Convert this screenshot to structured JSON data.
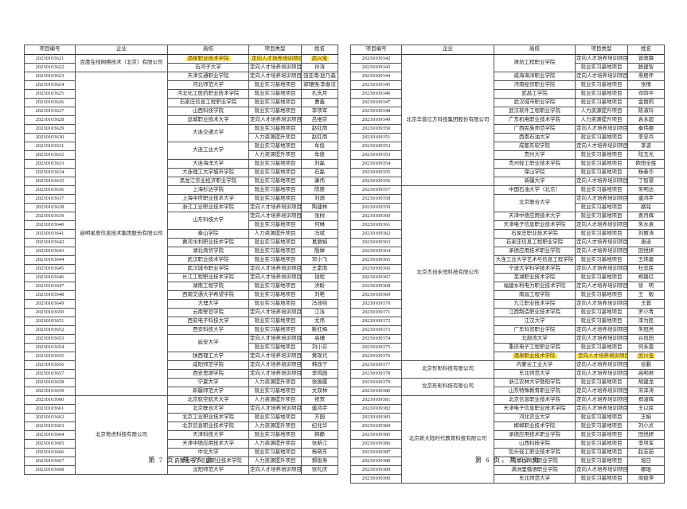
{
  "colors": {
    "highlight": "#ffe95e",
    "highlight_text": "#533700"
  },
  "header": {
    "col_id": "项目编号",
    "col_enterprise": "企业",
    "col_school": "高校",
    "col_type": "项目类型",
    "col_name": "姓名"
  },
  "row_format": "[project_id, school, project_type, name, school_rowspan(0=merged-into-above), highlighted(0|1)]",
  "left_table": {
    "footer": "第 7 页，共 75 页",
    "groups": [
      {
        "enterprise": "百度在线网络技术（北京）有限公司",
        "rows": [
          [
            "20230103621",
            "酒泉职业技术学院",
            "定向人才培养培训项目",
            "武兴宝",
            1,
            1
          ],
          [
            "20230103622",
            "石河子大学",
            "定向人才培养培训项目",
            "孙涛",
            1,
            0
          ]
        ]
      },
      {
        "enterprise": "启明星辰信息技术集团股份有限公司",
        "rows": [
          [
            "20230103623",
            "天津交通职业学院",
            "定向人才培养培训项目",
            "田亚南/赵乃森",
            1,
            0
          ],
          [
            "20230103624",
            "河北师范大学",
            "就业实习基地项目",
            "郭珊强/李春洁",
            1,
            0
          ],
          [
            "20230103625",
            "河北化工医药职业技术学院",
            "就业实习基地项目",
            "孔庆月",
            1,
            0
          ],
          [
            "20230103626",
            "石家庄信息工程职业学院",
            "就业实习基地项目",
            "曹鑫",
            1,
            0
          ],
          [
            "20230103627",
            "山西科技学院",
            "就业实习基地项目",
            "李项军",
            1,
            0
          ],
          [
            "20230103628",
            "运城职业技术大学",
            "定向人才培养培训项目",
            "吕维宗",
            1,
            0
          ],
          [
            "20230103629",
            "大连交通大学",
            "就业实习基地项目",
            "赵红雨",
            2,
            0
          ],
          [
            "20230103630",
            "",
            "人力资源提升项目",
            "赵红雨",
            0,
            0
          ],
          [
            "20230103631",
            "大连工业大学",
            "就业实习基地项目",
            "牟俊",
            2,
            0
          ],
          [
            "20230103632",
            "",
            "人力资源提升项目",
            "牟俊",
            0,
            0
          ],
          [
            "20230103633",
            "大连海洋大学",
            "就业实习基地项目",
            "刘磊",
            1,
            0
          ],
          [
            "20230103634",
            "大连理工大学城市学院",
            "就业实习基地项目",
            "石磊",
            1,
            0
          ],
          [
            "20230103635",
            "黑龙江农业经济职业学院",
            "就业实习基地项目",
            "康伟",
            1,
            0
          ],
          [
            "20230103636",
            "上海杉达学院",
            "就业实习基地项目",
            "陈庚",
            1,
            0
          ],
          [
            "20230103637",
            "上海中侨职业技术大学",
            "就业实习基地项目",
            "刘源",
            1,
            0
          ],
          [
            "20230103638",
            "浙江工业职业技术学院",
            "定向人才培养培训项目",
            "陶建林",
            1,
            0
          ],
          [
            "20230103639",
            "山东科技大学",
            "定向人才培养培训项目",
            "张树",
            2,
            0
          ],
          [
            "20230103640",
            "",
            "就业实习基地项目",
            "何琳",
            0,
            0
          ],
          [
            "20230103641",
            "泰山学院",
            "人力资源提升项目",
            "冯斌",
            1,
            0
          ],
          [
            "20230103642",
            "黄河水利职业技术学院",
            "就业实习基地项目",
            "葛丽娟",
            1,
            0
          ],
          [
            "20230103643",
            "湖北商贸学院",
            "就业实习基地项目",
            "殷婵",
            1,
            0
          ],
          [
            "20230103644",
            "武汉职业技术学院",
            "就业实习基地项目",
            "邓小飞",
            1,
            0
          ],
          [
            "20230103645",
            "武汉城市职业学院",
            "定向人才培养培训项目",
            "王素南",
            1,
            0
          ],
          [
            "20230103646",
            "长江工程职业技术学院",
            "定向人才培养培训项目",
            "钱程",
            1,
            0
          ],
          [
            "20230103647",
            "湖南工程学院",
            "就业实习基地项目",
            "洪盼",
            1,
            0
          ],
          [
            "20230103648",
            "西南交通大学希望学院",
            "就业实习基地项目",
            "刘艳",
            1,
            0
          ],
          [
            "20230103649",
            "大理大学",
            "就业实习基地项目",
            "冯效结",
            1,
            0
          ],
          [
            "20230103650",
            "云南警官学院",
            "定向人才培养培训项目",
            "江洛",
            1,
            0
          ],
          [
            "20230103651",
            "西安电子科技大学",
            "就业实习基地项目",
            "尤伟",
            1,
            0
          ],
          [
            "20230103652",
            "西安科技大学",
            "就业实习基地项目",
            "靳红梅",
            1,
            0
          ],
          [
            "20230103653",
            "延安大学",
            "定向人才培养培训项目",
            "高珊",
            2,
            0
          ],
          [
            "20230103654",
            "",
            "就业实习基地项目",
            "刘小芬",
            0,
            0
          ],
          [
            "20230103655",
            "陕西理工大学",
            "定向人才培养培训项目",
            "黄现代",
            1,
            0
          ],
          [
            "20230103656",
            "咸阳师范学院",
            "定向人才培养培训项目",
            "韩改宁",
            1,
            0
          ],
          [
            "20230103657",
            "西安思源学院",
            "定向人才培养培训项目",
            "李鸣园",
            1,
            0
          ],
          [
            "20230103658",
            "宁夏大学",
            "人力资源提升项目",
            "张振霞",
            1,
            0
          ],
          [
            "20230103659",
            "新疆师范大学",
            "就业实习基地项目",
            "文双林",
            1,
            0
          ]
        ]
      },
      {
        "enterprise": "北京奇虎科技有限公司",
        "rows": [
          [
            "20230103660",
            "北京航空航天大学",
            "人力资源提升项目",
            "祝贺",
            1,
            0
          ],
          [
            "20230103661",
            "北京联合大学",
            "定向人才培养培训项目",
            "盛鸿宇",
            1,
            0
          ],
          [
            "20230103662",
            "北京工业职业技术学院",
            "就业实习基地项目",
            "方园",
            1,
            0
          ],
          [
            "20230103663",
            "北京信息职业技术学院",
            "人力资源提升项目",
            "纪兆华",
            1,
            0
          ],
          [
            "20230103664",
            "天津科技大学",
            "就业实习基地项目",
            "韩静",
            1,
            0
          ],
          [
            "20230103665",
            "天津中德应用技术大学",
            "人力资源提升项目",
            "张新江",
            1,
            0
          ],
          [
            "20230103666",
            "中北大学",
            "就业实习基地项目",
            "杨晓东",
            1,
            0
          ],
          [
            "20230103667",
            "内蒙古电子信息职业技术学院",
            "人力资源提升项目",
            "郝俊寿",
            1,
            0
          ],
          [
            "20230103668",
            "沈阳师范大学",
            "定向人才培养培训项目",
            "张礼庆",
            1,
            0
          ]
        ]
      }
    ]
  },
  "right_table": {
    "footer": "第 6 页，共 32 页",
    "groups": [
      {
        "enterprise": "北京华普亿方科技集团股份有限公司",
        "rows": [
          [
            "20230109342",
            "潍坊工程职业学院",
            "定向人才培养培训项目",
            "曾政霖",
            2,
            0
          ],
          [
            "20230109343",
            "",
            "就业实习基地项目",
            "脱建智",
            0,
            0
          ],
          [
            "20230109344",
            "威海海洋职业学院",
            "定向人才培养培训项目",
            "燕居怀",
            1,
            0
          ],
          [
            "20230109345",
            "河南经贸职业学院",
            "就业实习基地项目",
            "张倩",
            1,
            0
          ],
          [
            "20230109346",
            "武昌工学院",
            "就业实习基地项目",
            "邓四平",
            1,
            0
          ],
          [
            "20230109347",
            "武汉城市职业学院",
            "就业实习基地项目",
            "金丽莉",
            1,
            0
          ],
          [
            "20230109348",
            "武汉软件工程职业学院",
            "人力资源提升项目",
            "陈淑玲",
            1,
            0
          ],
          [
            "20230109349",
            "广东机电职业技术学院",
            "人力资源提升项目",
            "袁永超",
            1,
            0
          ],
          [
            "20230109350",
            "广西民族师范学院",
            "定向人才培养培训项目",
            "秦伟娜",
            1,
            0
          ],
          [
            "20230109351",
            "西南石油大学",
            "就业实习基地项目",
            "李忠兵",
            1,
            0
          ],
          [
            "20230109352",
            "成都东软学院",
            "定向人才培养培训项目",
            "李波",
            1,
            0
          ],
          [
            "20230109353",
            "贵州大学",
            "就业实习基地项目",
            "陆玉光",
            1,
            0
          ],
          [
            "20230109354",
            "贵州轻工职业技术学院",
            "就业实习基地项目",
            "欧阳全胜",
            1,
            0
          ],
          [
            "20230109355",
            "保山学院",
            "就业实习基地项目",
            "杨春华",
            1,
            0
          ],
          [
            "20230109356",
            "新疆大学",
            "定向人才培养培训项目",
            "丁智慧",
            1,
            0
          ]
        ]
      },
      {
        "enterprise": "北京杰创永恒科技有限公司",
        "rows": [
          [
            "20230109357",
            "中国石油大学（北京）",
            "就业实习基地项目",
            "朱明达",
            1,
            0
          ],
          [
            "20230109358",
            "北京联合大学",
            "定向人才培养培训项目",
            "盛鸿宇",
            2,
            0
          ],
          [
            "20230109359",
            "",
            "就业实习基地项目",
            "路铭",
            0,
            0
          ],
          [
            "20230109360",
            "天津中德应用技术大学",
            "就业实习基地项目",
            "贾月辉",
            1,
            0
          ],
          [
            "20230109361",
            "天津电子信息职业技术学院",
            "定向人才培养培训项目",
            "朱水泉",
            1,
            0
          ],
          [
            "20230109362",
            "石家庄职业技术学院",
            "就业实习基地项目",
            "刘丽涛",
            1,
            0
          ],
          [
            "20230109363",
            "石家庄信息工程职业学院",
            "定向人才培养培训项目",
            "唐迪",
            1,
            0
          ],
          [
            "20230109364",
            "承德应用技术职业学院",
            "定向人才培养培训项目",
            "田悦妍",
            1,
            0
          ],
          [
            "20230109365",
            "大连工业大学艺术与信息工程学院",
            "就业实习基地项目",
            "王炜富",
            1,
            0
          ],
          [
            "20230109366",
            "宁波大学科学技术学院",
            "定向人才培养培训项目",
            "杜忠民",
            1,
            0
          ],
          [
            "20230109367",
            "芜湖职业技术学院",
            "就业实习基地项目",
            "郑路红",
            1,
            0
          ],
          [
            "20230109368",
            "福建水利电力职业技术学院",
            "定向人才培养培训项目",
            "徐　明",
            1,
            0
          ],
          [
            "20230109369",
            "南昌工程学院",
            "就业实习基地项目",
            "王　毅",
            1,
            0
          ],
          [
            "20230109370",
            "九江职业技术学院",
            "定向人才培养培训项目",
            "王蓉",
            1,
            0
          ],
          [
            "20230109371",
            "江西制造职业技术学院",
            "就业实习基地项目",
            "罗小青",
            1,
            0
          ],
          [
            "20230109372",
            "江汉大学",
            "就业实习基地项目",
            "漆为民",
            1,
            0
          ],
          [
            "20230109373",
            "广东科贸职业学院",
            "定向人才培养培训项目",
            "朱冠亮",
            1,
            0
          ],
          [
            "20230109374",
            "北部湾大学",
            "定向人才培养培训项目",
            "谷良田",
            1,
            0
          ],
          [
            "20230109375",
            "重庆电子工程职业学院",
            "就业实习基地项目",
            "何永霞",
            1,
            0
          ],
          [
            "20230109376",
            "酒泉职业技术学院",
            "定向人才培养培训项目",
            "武兴宝",
            1,
            1
          ]
        ]
      },
      {
        "enterprise": "北京形彰科技有限公司",
        "rows": [
          [
            "20230109377",
            "内蒙古工业大学",
            "定向人才培养培训项目",
            "徐鹏",
            1,
            0
          ],
          [
            "20230109378",
            "东北师范大学",
            "定向人才培养培训项目",
            "高明君",
            1,
            0
          ]
        ]
      },
      {
        "enterprise": "北京形彰科技有限公司",
        "rows": [
          [
            "20230109379",
            "浙江农林大学暨阳学院",
            "就业实习基地项目",
            "胡建龙",
            1,
            0
          ],
          [
            "20230109380",
            "山东特殊教育职业学院",
            "定向人才培养培训项目",
            "宋泽涛",
            1,
            0
          ]
        ]
      },
      {
        "enterprise": "北京新大陆时代教育科技有限公司",
        "rows": [
          [
            "20230109381",
            "北京信息职业技术学院",
            "定向人才培养培训项目",
            "郑淑晖",
            1,
            0
          ],
          [
            "20230109382",
            "天津电子信息职业技术学院",
            "定向人才培养培训项目",
            "王以民",
            1,
            0
          ],
          [
            "20230109383",
            "河北农业大学",
            "就业实习基地项目",
            "王娟",
            1,
            0
          ],
          [
            "20230109384",
            "邯郸职业技术学院",
            "就业实习基地项目",
            "刘小贞",
            1,
            0
          ],
          [
            "20230109385",
            "承德应用技术职业学院",
            "就业实习基地项目",
            "田悦妍",
            1,
            0
          ],
          [
            "20230109386",
            "山西科技学院",
            "就业实习基地项目",
            "李项军",
            1,
            0
          ],
          [
            "20230109387",
            "包头轻工职业技术学院",
            "就业实习基地项目",
            "赵志茹",
            1,
            0
          ],
          [
            "20230109388",
            "内蒙古商贸职业学院",
            "就业实习基地项目",
            "旭日",
            1,
            0
          ],
          [
            "20230109389",
            "满洲里俄语职业学院",
            "定向人才培养培训项目",
            "娜琨",
            1,
            0
          ],
          [
            "20230109390",
            "东北师范大学",
            "就业实习基地项目",
            "周俊萍",
            1,
            0
          ]
        ]
      }
    ]
  }
}
